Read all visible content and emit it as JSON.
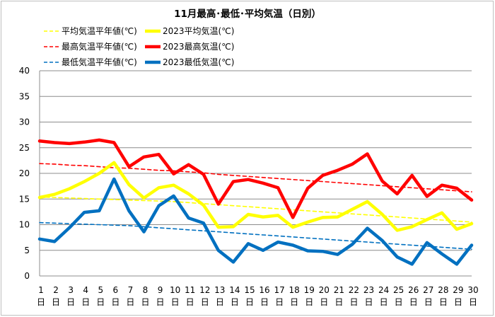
{
  "chart_data": {
    "type": "line",
    "title": "11月最高･最低･平均気温（日別）",
    "xlabel": "",
    "ylabel": "",
    "ylim": [
      0,
      40
    ],
    "yticks": [
      0,
      5,
      10,
      15,
      20,
      25,
      30,
      35,
      40
    ],
    "grid": true,
    "legend_position": "top-left",
    "categories": [
      "1日",
      "2日",
      "3日",
      "4日",
      "5日",
      "6日",
      "7日",
      "8日",
      "9日",
      "10日",
      "11日",
      "12日",
      "13日",
      "14日",
      "15日",
      "16日",
      "17日",
      "18日",
      "19日",
      "20日",
      "21日",
      "22日",
      "23日",
      "24日",
      "25日",
      "26日",
      "27日",
      "28日",
      "29日",
      "30日"
    ],
    "series": [
      {
        "name": "平均気温平年値(℃)",
        "color": "#ffff00",
        "style": "dashed",
        "values": [
          15.4,
          15.3,
          15.2,
          15.1,
          15.0,
          14.9,
          14.8,
          14.7,
          14.6,
          14.5,
          14.3,
          14.1,
          13.9,
          13.7,
          13.5,
          13.3,
          13.1,
          12.9,
          12.7,
          12.5,
          12.3,
          12.1,
          11.9,
          11.7,
          11.5,
          11.3,
          11.1,
          10.9,
          10.7,
          10.5
        ]
      },
      {
        "name": "2023平均気温(℃)",
        "color": "#ffff00",
        "style": "solid",
        "values": [
          15.3,
          15.9,
          17.0,
          18.4,
          20.0,
          22.1,
          17.8,
          15.2,
          17.2,
          17.7,
          16.0,
          13.8,
          9.5,
          9.6,
          12.0,
          11.5,
          11.8,
          9.5,
          10.5,
          11.4,
          11.5,
          13.0,
          14.5,
          12.0,
          8.9,
          9.6,
          11.0,
          12.3,
          9.1,
          10.2
        ]
      },
      {
        "name": "最高気温平年値(℃)",
        "color": "#ff0000",
        "style": "dashed",
        "values": [
          21.9,
          21.8,
          21.6,
          21.5,
          21.3,
          21.1,
          21.0,
          20.8,
          20.6,
          20.5,
          20.3,
          20.1,
          19.8,
          19.6,
          19.4,
          19.2,
          19.0,
          18.8,
          18.6,
          18.4,
          18.2,
          18.0,
          17.8,
          17.6,
          17.4,
          17.2,
          17.0,
          16.8,
          16.6,
          16.4
        ]
      },
      {
        "name": "2023最高気温(℃)",
        "color": "#ff0000",
        "style": "solid",
        "values": [
          26.3,
          26.0,
          25.8,
          26.1,
          26.5,
          26.0,
          21.3,
          23.2,
          23.7,
          19.9,
          21.7,
          19.8,
          14.0,
          18.4,
          18.8,
          18.1,
          17.2,
          11.4,
          17.1,
          19.6,
          20.6,
          21.8,
          23.8,
          18.5,
          16.0,
          19.6,
          15.5,
          17.7,
          17.1,
          14.8
        ]
      },
      {
        "name": "最低気温平年値(℃)",
        "color": "#0070c0",
        "style": "dashed",
        "values": [
          10.4,
          10.3,
          10.2,
          10.1,
          10.0,
          9.9,
          9.8,
          9.6,
          9.4,
          9.2,
          9.0,
          8.8,
          8.6,
          8.4,
          8.2,
          8.0,
          7.8,
          7.6,
          7.4,
          7.2,
          7.0,
          6.8,
          6.6,
          6.4,
          6.2,
          6.0,
          5.8,
          5.6,
          5.4,
          5.2
        ]
      },
      {
        "name": "2023最低気温(℃)",
        "color": "#0070c0",
        "style": "solid",
        "values": [
          7.2,
          6.7,
          9.4,
          12.4,
          12.7,
          18.9,
          12.7,
          8.6,
          13.7,
          15.6,
          11.3,
          10.3,
          5.0,
          2.7,
          6.3,
          5.0,
          6.6,
          6.0,
          4.9,
          4.8,
          4.2,
          6.2,
          9.3,
          6.9,
          3.7,
          2.3,
          6.5,
          4.3,
          2.3,
          6.0
        ]
      }
    ]
  }
}
